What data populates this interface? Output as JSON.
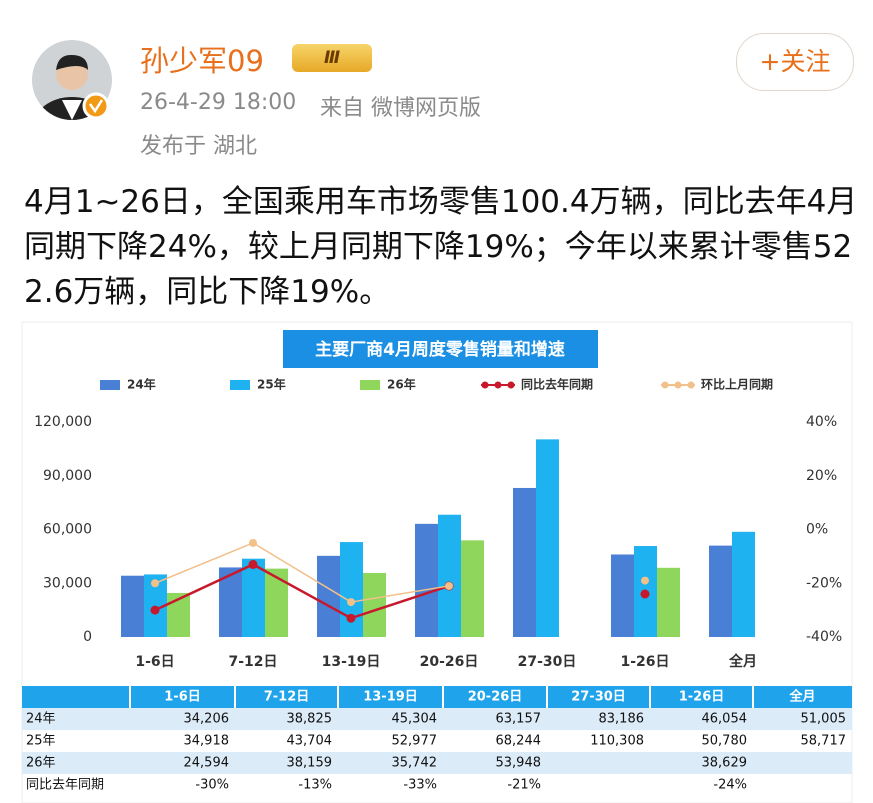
{
  "post": {
    "author": "孙少军09",
    "badge": "Ⅲ",
    "time": "26-4-29 18:00",
    "source": "来自 微博网页版",
    "location": "发布于 湖北",
    "follow": "+关注",
    "text": "4月1~26日，全国乘用车市场零售100.4万辆，同比去年4月同期下降24%，较上月同期下降19%；今年以来累计零售522.6万辆，同比下降19%。"
  },
  "chart_data": {
    "type": "bar",
    "title": "主要厂商4月周度零售销量和增速",
    "categories": [
      "1-6日",
      "7-12日",
      "13-19日",
      "20-26日",
      "27-30日",
      "1-26日",
      "全月"
    ],
    "series": [
      {
        "name": "24年",
        "color": "#4a7fd6",
        "type": "bar",
        "values": [
          34206,
          38825,
          45304,
          63157,
          83186,
          46054,
          51005
        ],
        "value_labels": [
          "34,206",
          "38,825",
          "45,304",
          "63,157",
          "83,186",
          "46,054",
          "51,005"
        ]
      },
      {
        "name": "25年",
        "color": "#1eb2f0",
        "type": "bar",
        "values": [
          34918,
          43704,
          52977,
          68244,
          110308,
          50780,
          58717
        ],
        "value_labels": [
          "34,918",
          "43,704",
          "52,977",
          "68,244",
          "110,308",
          "50,780",
          "58,717"
        ]
      },
      {
        "name": "26年",
        "color": "#8fd65c",
        "type": "bar",
        "values": [
          24594,
          38159,
          35742,
          53948,
          null,
          38629,
          null
        ],
        "value_labels": [
          "24,594",
          "38,159",
          "35,742",
          "53,948",
          null,
          "38,629",
          null
        ]
      },
      {
        "name": "同比去年同期",
        "color": "#c8192c",
        "type": "line",
        "axis": "y2",
        "values": [
          -30,
          -13,
          -33,
          -21,
          null,
          -24,
          null
        ],
        "value_labels": [
          "-30%",
          "-13%",
          "-33%",
          "-21%",
          null,
          "-24%",
          null
        ]
      },
      {
        "name": "环比上月同期",
        "color": "#f2c08a",
        "type": "line",
        "axis": "y2",
        "values": [
          -20,
          -5,
          -27,
          -21,
          null,
          -19,
          null
        ]
      }
    ],
    "ylim": [
      0,
      120000
    ],
    "yticks": [
      0,
      {
        "value": 30000,
        "label": "30,000"
      },
      {
        "value": 60000,
        "label": "60,000"
      },
      {
        "value": 90000,
        "label": "90,000"
      },
      {
        "value": 120000,
        "label": "120,000"
      }
    ],
    "y2lim": [
      -40,
      40
    ],
    "y2ticks": [
      {
        "value": -40,
        "label": "-40%"
      },
      {
        "value": -20,
        "label": "-20%"
      },
      {
        "value": 0,
        "label": "0%"
      },
      {
        "value": 20,
        "label": "20%"
      },
      {
        "value": 40,
        "label": "40%"
      }
    ],
    "grid": false
  }
}
